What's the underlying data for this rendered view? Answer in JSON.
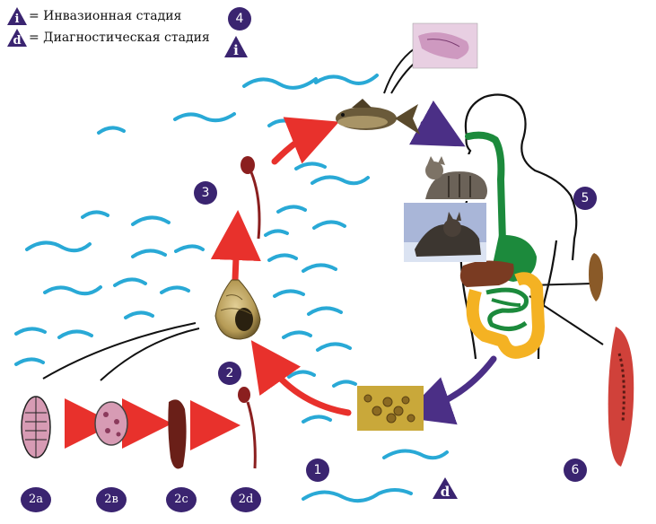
{
  "legend": {
    "infective": {
      "symbol": "i",
      "text": "= Инвазионная стадия"
    },
    "diagnostic": {
      "symbol": "d",
      "text": "= Диагностическая стадия"
    }
  },
  "stages": {
    "s1": "1",
    "s2": "2",
    "s3": "3",
    "s4": "4",
    "s5": "5",
    "s6": "6",
    "s2a": "2a",
    "s2b": "2в",
    "s2c": "2c",
    "s2d": "2d",
    "infective_marker": "i",
    "diagnostic_marker": "d"
  },
  "colors": {
    "water": "#29a9d6",
    "arrow_red": "#e8312c",
    "arrow_purple": "#4b2f86",
    "badge": "#3a2470",
    "gut_green": "#1c8a3c",
    "intestine_yellow": "#f4b223",
    "liver_brown": "#7a3b22",
    "larva_red": "#8b1f1f"
  }
}
